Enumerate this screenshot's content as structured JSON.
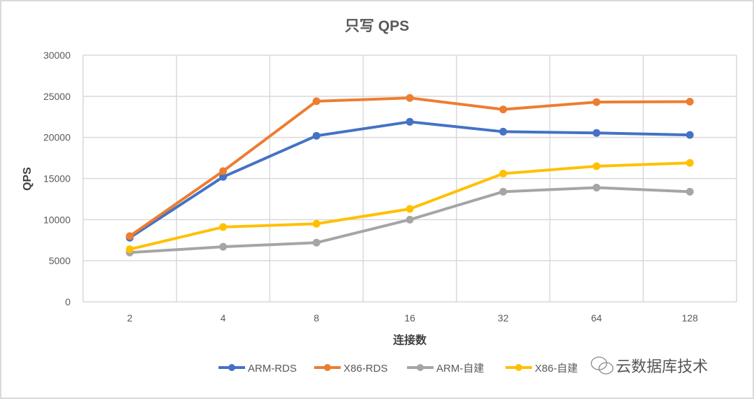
{
  "chart_data": {
    "type": "line",
    "title": "只写 QPS",
    "xlabel": "连接数",
    "ylabel": "QPS",
    "categories": [
      "2",
      "4",
      "8",
      "16",
      "32",
      "64",
      "128"
    ],
    "ylim": [
      0,
      30000
    ],
    "yticks": [
      "0",
      "5000",
      "10000",
      "15000",
      "20000",
      "25000",
      "30000"
    ],
    "grid": true,
    "legend_position": "bottom",
    "series": [
      {
        "name": "ARM-RDS",
        "color": "#4472C4",
        "values": [
          7800,
          15200,
          20200,
          21900,
          20700,
          20550,
          20300
        ]
      },
      {
        "name": "X86-RDS",
        "color": "#ED7D31",
        "values": [
          8000,
          15900,
          24400,
          24800,
          23400,
          24300,
          24350
        ]
      },
      {
        "name": "ARM-自建",
        "color": "#A5A5A5",
        "values": [
          6000,
          6700,
          7200,
          10000,
          13400,
          13900,
          13400
        ]
      },
      {
        "name": "X86-自建",
        "color": "#FFC000",
        "values": [
          6400,
          9100,
          9500,
          11300,
          15600,
          16500,
          16900
        ]
      }
    ]
  },
  "watermark": "云数据库技术"
}
